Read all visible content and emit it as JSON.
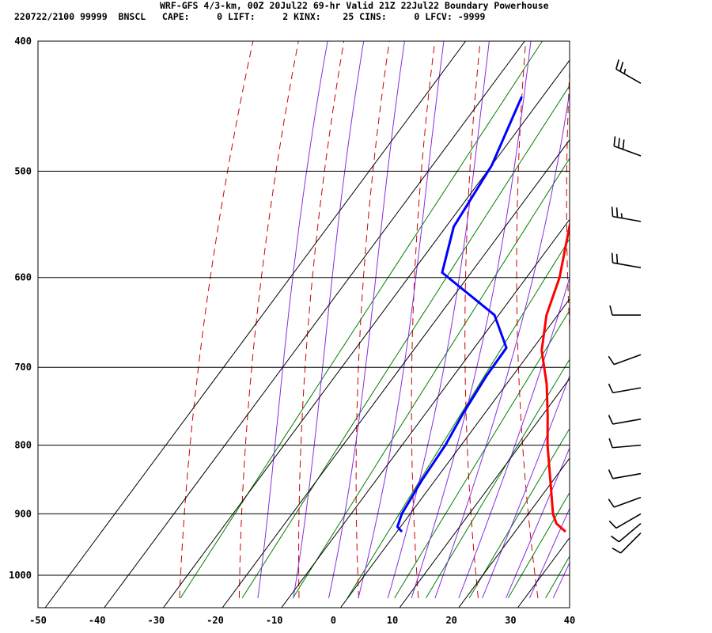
{
  "header": {
    "line1": "WRF-GFS 4/3-km, 00Z 20Jul22 69-hr Valid 21Z 22Jul22 Boundary Powerhouse",
    "line2": "220722/2100 99999  BNSCL   CAPE:     0 LIFT:     2 KINX:    25 CINS:     0 LFCV: -9999"
  },
  "colors": {
    "temperature": "#ff0000",
    "dewpoint": "#0000ff",
    "dry_adiabat": "#cc0000",
    "moist_adiabat": "#8a2be2",
    "mixing_ratio": "#008000",
    "grid": "#000000"
  },
  "chart_data": {
    "type": "line",
    "title": "",
    "xlabel": "",
    "ylabel": "",
    "x_scale": "skew",
    "y_scale": "log-pressure",
    "xlim": [
      -50,
      40
    ],
    "ylim": [
      1040,
      400
    ],
    "x_ticks": [
      -50,
      -40,
      -30,
      -20,
      -10,
      0,
      10,
      20,
      30,
      40
    ],
    "y_ticks": [
      400,
      500,
      600,
      700,
      800,
      900,
      1000
    ],
    "grid": true,
    "series": [
      {
        "name": "",
        "role": "temperature",
        "points": [
          {
            "p": 440,
            "t": -20.2
          },
          {
            "p": 490,
            "t": -14.5
          },
          {
            "p": 550,
            "t": -8.7
          },
          {
            "p": 600,
            "t": -3.9
          },
          {
            "p": 640,
            "t": -1.3
          },
          {
            "p": 680,
            "t": 2.4
          },
          {
            "p": 720,
            "t": 7.5
          },
          {
            "p": 760,
            "t": 11.7
          },
          {
            "p": 800,
            "t": 15.5
          },
          {
            "p": 850,
            "t": 20.5
          },
          {
            "p": 900,
            "t": 25.2
          },
          {
            "p": 915,
            "t": 27.0
          },
          {
            "p": 928,
            "t": 29.6
          }
        ]
      },
      {
        "name": "",
        "role": "dewpoint",
        "points": [
          {
            "p": 440,
            "t": -33.4
          },
          {
            "p": 495,
            "t": -29.7
          },
          {
            "p": 550,
            "t": -28.3
          },
          {
            "p": 595,
            "t": -24.4
          },
          {
            "p": 640,
            "t": -10.1
          },
          {
            "p": 677,
            "t": -3.9
          },
          {
            "p": 710,
            "t": -3.7
          },
          {
            "p": 760,
            "t": -2.8
          },
          {
            "p": 800,
            "t": -1.8
          },
          {
            "p": 850,
            "t": -1.3
          },
          {
            "p": 900,
            "t": -0.4
          },
          {
            "p": 920,
            "t": 0.5
          },
          {
            "p": 928,
            "t": 1.9
          }
        ]
      }
    ],
    "wind_barbs": [
      {
        "p": 430,
        "dir": 300,
        "speed": 25
      },
      {
        "p": 487,
        "dir": 290,
        "speed": 30
      },
      {
        "p": 545,
        "dir": 280,
        "speed": 25
      },
      {
        "p": 590,
        "dir": 280,
        "speed": 20
      },
      {
        "p": 640,
        "dir": 270,
        "speed": 10
      },
      {
        "p": 685,
        "dir": 250,
        "speed": 10
      },
      {
        "p": 725,
        "dir": 260,
        "speed": 10
      },
      {
        "p": 765,
        "dir": 260,
        "speed": 10
      },
      {
        "p": 800,
        "dir": 265,
        "speed": 10
      },
      {
        "p": 840,
        "dir": 260,
        "speed": 10
      },
      {
        "p": 875,
        "dir": 250,
        "speed": 10
      },
      {
        "p": 900,
        "dir": 240,
        "speed": 10
      },
      {
        "p": 915,
        "dir": 230,
        "speed": 10
      },
      {
        "p": 930,
        "dir": 225,
        "speed": 10
      }
    ]
  }
}
